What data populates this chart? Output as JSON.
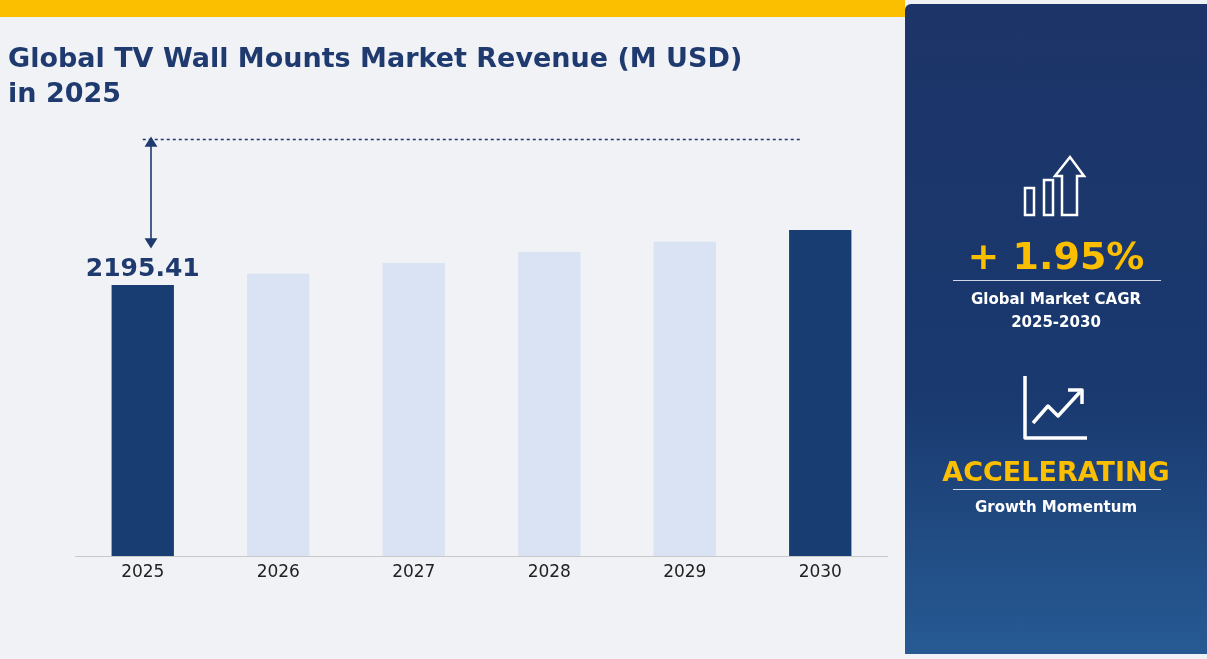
{
  "chart_data": {
    "type": "bar",
    "title": "Global TV Wall Mounts Market Revenue (M USD) in 2025",
    "categories": [
      "2025",
      "2026",
      "2027",
      "2028",
      "2029",
      "2030"
    ],
    "values": [
      2195.41,
      2285,
      2373,
      2463,
      2544,
      2641
    ],
    "colors": [
      "#173d73",
      "#dae3f3",
      "#dae3f3",
      "#dae3f3",
      "#dae3f3",
      "#173d73"
    ],
    "value_labels": [
      "2195.41",
      null,
      null,
      null,
      null,
      null
    ],
    "annotations": [
      "+ 1.95%",
      "Global Market CAGR",
      "2025-2030",
      "ACCELERATING",
      "Growth Momentum"
    ]
  }
}
